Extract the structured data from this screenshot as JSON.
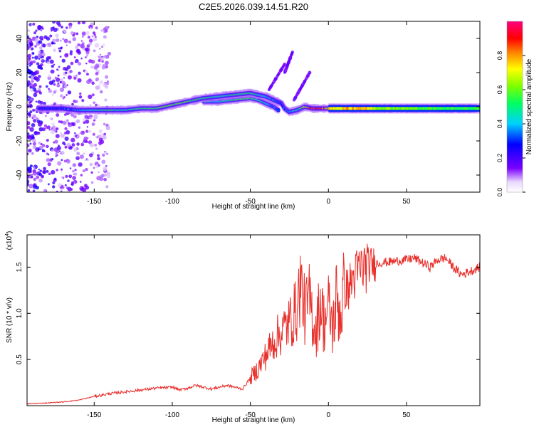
{
  "figure": {
    "title": "C2E5.2026.039.14.51.R20"
  },
  "chart_data": [
    {
      "type": "heatmap",
      "xlabel": "Height of straight line (km)",
      "ylabel": "Frequency (Hz)",
      "xlim": [
        -193,
        97
      ],
      "ylim": [
        -50,
        50
      ],
      "xticks": [
        -150,
        -100,
        -50,
        0,
        50
      ],
      "yticks": [
        -40,
        -20,
        0,
        20,
        40
      ],
      "xtick_labels": [
        "-150",
        "-100",
        "-50",
        "0",
        "50"
      ],
      "ytick_labels": [
        "-40",
        "-20",
        "0",
        "20",
        "40"
      ],
      "colorbar": {
        "label": "Normalized spectral amplitude",
        "range": [
          0,
          1
        ],
        "ticks": [
          0.0,
          0.2,
          0.4,
          0.6,
          0.8
        ],
        "tick_labels": [
          "0.0",
          "0.2",
          "0.4",
          "0.6",
          "0.8"
        ],
        "colormap": "rainbow (purple-blue-cyan-green-yellow-red-magenta)"
      },
      "ridge": {
        "description": "dominant frequency ridge vs height",
        "x": [
          -185,
          -170,
          -160,
          -150,
          -140,
          -130,
          -120,
          -110,
          -100,
          -90,
          -80,
          -70,
          -60,
          -50,
          -45,
          -40,
          -35,
          -30,
          -28,
          -25,
          -20,
          -15,
          -10,
          -5,
          0,
          10,
          20,
          30,
          50,
          70,
          95
        ],
        "freq_hz": [
          -1,
          -1,
          -2,
          -2,
          -2,
          -2,
          -1,
          -1,
          1,
          3,
          5,
          6,
          7,
          8,
          7,
          6,
          4,
          2,
          -1,
          -3,
          -2,
          0,
          -1,
          -1,
          -1,
          -1,
          -1,
          -1,
          -1,
          -1,
          -1
        ],
        "amplitude": [
          0.25,
          0.3,
          0.35,
          0.45,
          0.5,
          0.45,
          0.5,
          0.55,
          0.6,
          0.55,
          0.5,
          0.45,
          0.5,
          0.55,
          0.45,
          0.4,
          0.35,
          0.3,
          0.3,
          0.35,
          0.45,
          0.65,
          0.95,
          0.9,
          0.7,
          0.75,
          0.8,
          0.65,
          0.6,
          0.55,
          0.55
        ]
      },
      "secondary_ridge": {
        "x": [
          -80,
          -70,
          -60,
          -50,
          -45,
          -40,
          -35,
          -32
        ],
        "freq_hz": [
          3,
          3,
          4,
          5,
          4,
          2,
          0,
          -2
        ],
        "amplitude": [
          0.4,
          0.45,
          0.5,
          0.55,
          0.5,
          0.4,
          0.35,
          0.3
        ]
      },
      "streaks": [
        {
          "x": [
            -38,
            -28
          ],
          "freq_hz": [
            10,
            25
          ]
        },
        {
          "x": [
            -28,
            -23
          ],
          "freq_hz": [
            20,
            32
          ]
        },
        {
          "x": [
            -22,
            -12
          ],
          "freq_hz": [
            4,
            20
          ]
        }
      ],
      "noise_region_x": [
        -193,
        -140
      ]
    },
    {
      "type": "line",
      "xlabel": "Height of straight line (km)",
      "ylabel": "SNR (10 * v/v)",
      "y_multiplier": "(x10",
      "y_multiplier_exp": "4",
      "y_multiplier_close": ")",
      "xlim": [
        -193,
        97
      ],
      "ylim": [
        0,
        1.85
      ],
      "xticks": [
        -150,
        -100,
        -50,
        0,
        50
      ],
      "yticks": [
        0.5,
        1.0,
        1.5
      ],
      "xtick_labels": [
        "-150",
        "-100",
        "-50",
        "0",
        "50"
      ],
      "ytick_labels": [
        "0.5",
        "1.0",
        "1.5"
      ],
      "grid": false,
      "series": [
        {
          "color": "#e8302c",
          "x": [
            -193,
            -180,
            -170,
            -160,
            -150,
            -140,
            -130,
            -120,
            -110,
            -100,
            -95,
            -90,
            -85,
            -80,
            -75,
            -70,
            -65,
            -60,
            -55,
            -50,
            -45,
            -40,
            -35,
            -30,
            -25,
            -20,
            -18,
            -15,
            -12,
            -10,
            -8,
            -5,
            -3,
            0,
            3,
            5,
            8,
            10,
            12,
            15,
            20,
            25,
            30,
            35,
            40,
            45,
            50,
            55,
            60,
            65,
            70,
            75,
            80,
            85,
            90,
            97
          ],
          "values": [
            0.02,
            0.03,
            0.04,
            0.06,
            0.1,
            0.13,
            0.15,
            0.17,
            0.19,
            0.2,
            0.17,
            0.19,
            0.22,
            0.2,
            0.18,
            0.2,
            0.22,
            0.2,
            0.18,
            0.3,
            0.4,
            0.55,
            0.7,
            0.8,
            0.9,
            1.05,
            1.35,
            1.0,
            1.15,
            0.95,
            0.8,
            1.15,
            0.9,
            1.05,
            0.85,
            1.15,
            1.0,
            1.3,
            1.25,
            1.35,
            1.48,
            1.52,
            1.54,
            1.55,
            1.56,
            1.57,
            1.58,
            1.6,
            1.55,
            1.5,
            1.58,
            1.6,
            1.5,
            1.42,
            1.45,
            1.5
          ]
        }
      ]
    }
  ]
}
